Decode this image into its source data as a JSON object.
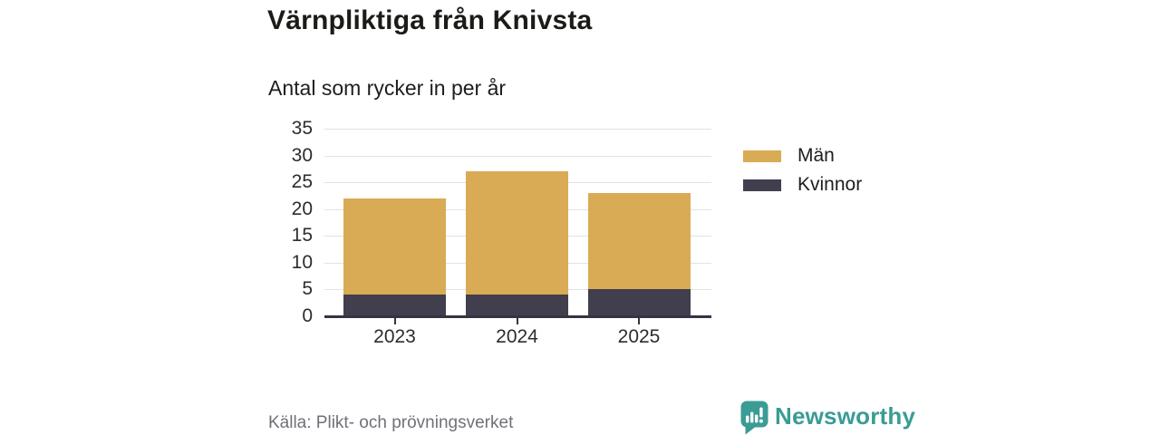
{
  "header": {
    "title": "Värnpliktiga från Knivsta",
    "subtitle": "Antal som rycker in per år"
  },
  "chart_data": {
    "type": "bar",
    "stacked": true,
    "title": "Värnpliktiga från Knivsta",
    "subtitle": "Antal som rycker in per år",
    "categories": [
      "2023",
      "2024",
      "2025"
    ],
    "series": [
      {
        "name": "Kvinnor",
        "color": "#413E4D",
        "values": [
          4,
          4,
          5
        ]
      },
      {
        "name": "Män",
        "color": "#D9AB54",
        "values": [
          18,
          23,
          18
        ]
      }
    ],
    "stack_totals": [
      22,
      27,
      23
    ],
    "xlabel": "",
    "ylabel": "",
    "ylim": [
      0,
      35
    ],
    "ytick_step": 5,
    "yticks": [
      0,
      5,
      10,
      15,
      20,
      25,
      30,
      35
    ],
    "grid": true,
    "legend_position": "right"
  },
  "legend": {
    "items": [
      {
        "label": "Män",
        "color": "#D9AB54"
      },
      {
        "label": "Kvinnor",
        "color": "#413E4D"
      }
    ]
  },
  "footer": {
    "source": "Källa: Plikt- och prövningsverket",
    "brand": "Newsworthy"
  },
  "colors": {
    "men": "#D9AB54",
    "women": "#413E4D",
    "brand_teal": "#3A9C95",
    "gridline": "#e2e2e2",
    "axis": "#363344"
  }
}
